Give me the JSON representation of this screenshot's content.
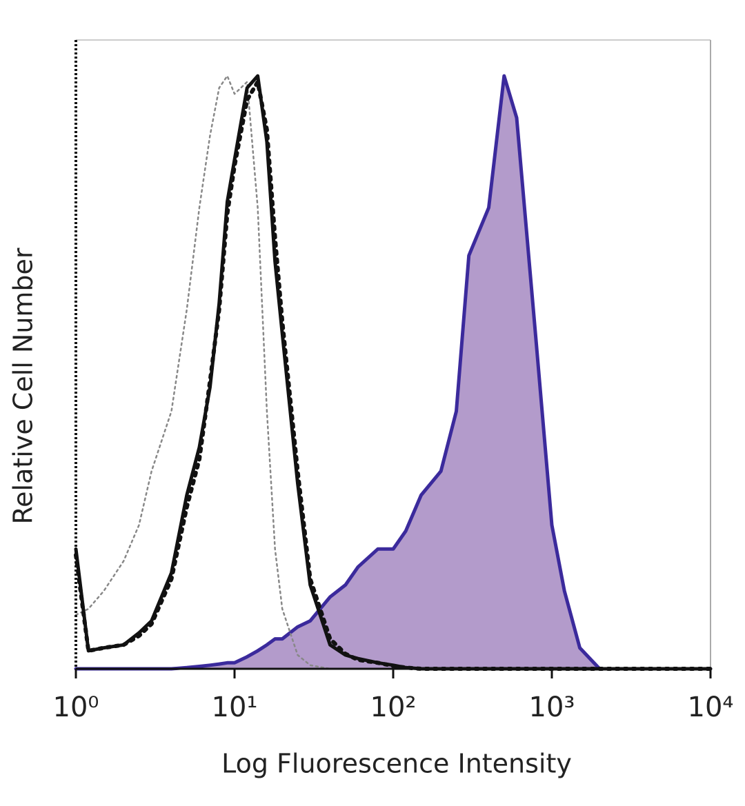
{
  "chart_data": {
    "type": "histogram-overlay",
    "xlabel": "Log Fluorescence Intensity",
    "ylabel": "Relative Cell Number",
    "xscale": "log",
    "xlim": [
      1,
      10000
    ],
    "ylim": [
      0,
      105
    ],
    "xticks": [
      {
        "value": 1,
        "label": "10⁰"
      },
      {
        "value": 10,
        "label": "10¹"
      },
      {
        "value": 100,
        "label": "10²"
      },
      {
        "value": 1000,
        "label": "10³"
      },
      {
        "value": 10000,
        "label": "10⁴"
      }
    ],
    "x": [
      1,
      1.2,
      1.5,
      2,
      2.5,
      3,
      4,
      5,
      6,
      7,
      8,
      9,
      10,
      12,
      14,
      16,
      18,
      20,
      25,
      30,
      40,
      50,
      60,
      80,
      100,
      120,
      150,
      200,
      250,
      300,
      400,
      500,
      600,
      800,
      1000,
      1200,
      1500,
      2000,
      3000,
      5000,
      10000
    ],
    "series": [
      {
        "color": "#3b2a9c",
        "fill": "#b39bcb",
        "dash": "solid",
        "values": [
          0,
          0,
          0,
          0,
          0,
          0,
          0,
          0.2,
          0.4,
          0.6,
          0.8,
          1,
          1,
          2,
          3,
          4,
          5,
          5,
          7,
          8,
          12,
          14,
          17,
          20,
          20,
          23,
          29,
          33,
          43,
          69,
          77,
          99,
          92,
          54,
          24,
          13,
          3.5,
          0,
          0,
          0,
          0
        ]
      },
      {
        "color": "#888888",
        "dash": "dotted",
        "values": [
          9,
          10,
          13,
          18,
          24,
          33,
          43,
          60,
          77,
          89,
          97,
          99,
          96,
          98,
          77,
          43,
          20,
          10,
          2.3,
          0.6,
          0,
          0,
          0,
          0,
          0,
          0,
          0,
          0,
          0,
          0,
          0,
          0,
          0,
          0,
          0,
          0,
          0,
          0,
          0,
          0,
          0
        ]
      },
      {
        "color": "#111111",
        "dash": "heavy-dotted",
        "values": [
          19,
          3,
          3.5,
          4,
          5.5,
          7.5,
          15,
          27,
          35,
          48,
          60,
          76,
          84,
          95,
          98,
          90,
          72,
          58,
          33,
          15,
          5,
          2.5,
          1.5,
          1,
          0.5,
          0.2,
          0,
          0,
          0,
          0,
          0,
          0,
          0,
          0,
          0,
          0,
          0,
          0,
          0,
          0,
          0
        ]
      },
      {
        "color": "#111111",
        "dash": "solid",
        "values": [
          20,
          3,
          3.5,
          4,
          6,
          8,
          16,
          29,
          37,
          47,
          61,
          78,
          85,
          97,
          99,
          88,
          68,
          56,
          31,
          14,
          4,
          2.3,
          1.7,
          1,
          0.6,
          0.2,
          0,
          0,
          0,
          0,
          0,
          0,
          0,
          0,
          0,
          0,
          0,
          0,
          0,
          0,
          0
        ]
      }
    ]
  }
}
